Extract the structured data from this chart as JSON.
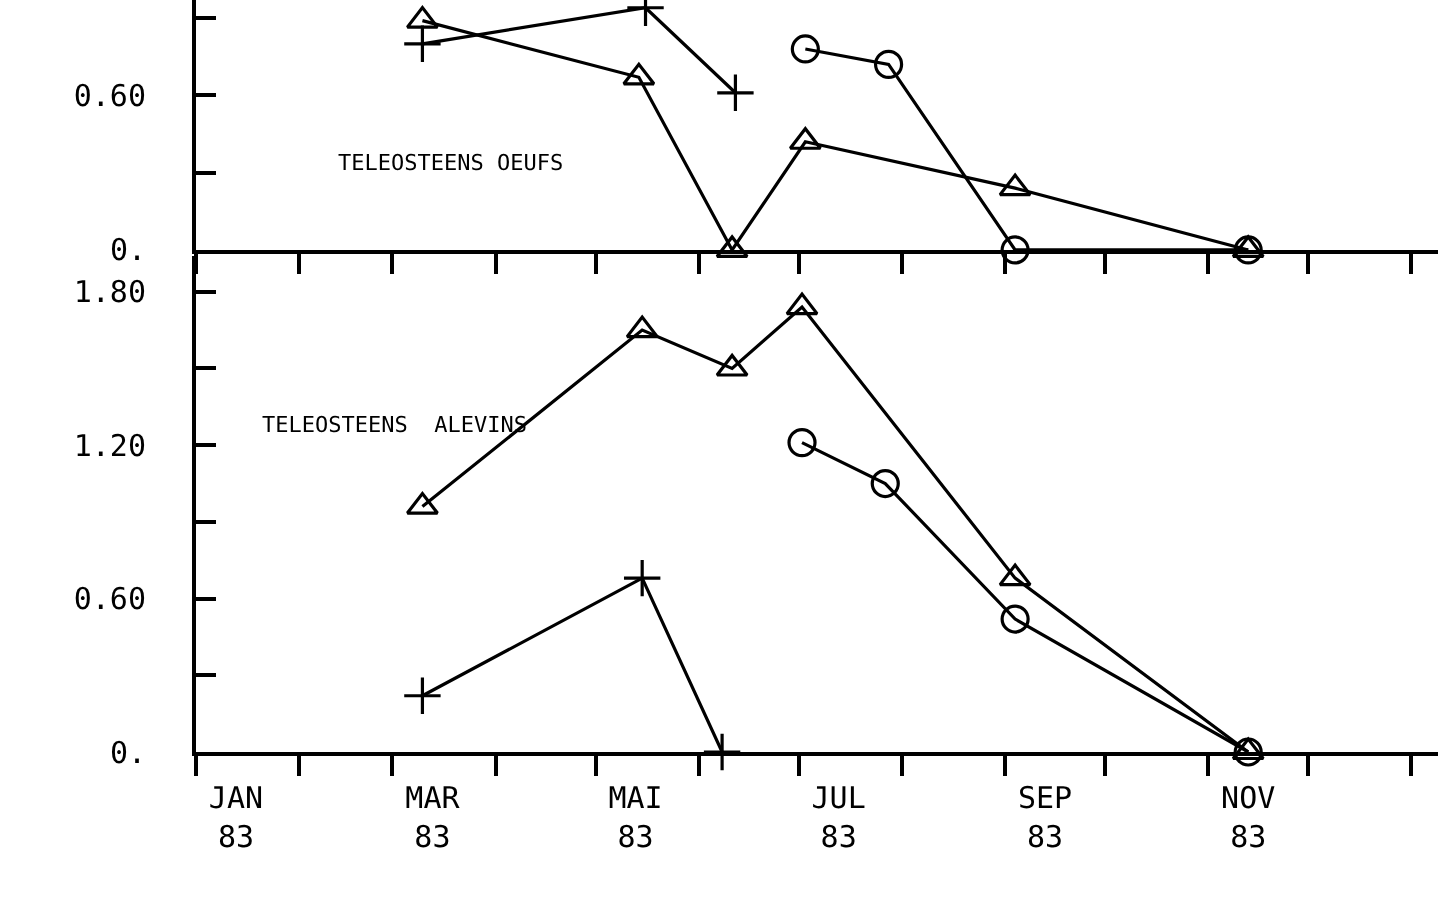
{
  "chart_data": [
    {
      "type": "line",
      "annotations": [
        "TELEOSTEENS OEUFS"
      ],
      "tick_labels": "y",
      "xlim": [
        "1983-01-01",
        "1984-01-09"
      ],
      "xticks": [
        {
          "value": "1983-01-01",
          "label": null
        },
        {
          "value": "1983-02-01",
          "label": null
        },
        {
          "value": "1983-03-01",
          "label": null
        },
        {
          "value": "1983-04-01",
          "label": null
        },
        {
          "value": "1983-05-01",
          "label": null
        },
        {
          "value": "1983-06-01",
          "label": null
        },
        {
          "value": "1983-07-01",
          "label": null
        },
        {
          "value": "1983-08-01",
          "label": null
        },
        {
          "value": "1983-09-01",
          "label": null
        },
        {
          "value": "1983-10-01",
          "label": null
        },
        {
          "value": "1983-11-01",
          "label": null
        },
        {
          "value": "1983-12-01",
          "label": null
        },
        {
          "value": "1984-01-01",
          "label": null
        }
      ],
      "ylim": [
        0,
        0.97
      ],
      "yticks": [
        {
          "value": 0,
          "label": "0."
        },
        {
          "value": 0.3,
          "label": null
        },
        {
          "value": 0.6,
          "label": "0.60"
        },
        {
          "value": 0.9,
          "label": null
        }
      ],
      "series": [
        {
          "color": "#000000",
          "marker": "triangle",
          "x": [
            "1983-03-10",
            "1983-05-14",
            "1983-06-11",
            "1983-07-03",
            "1983-09-04",
            "1983-11-13"
          ],
          "values": [
            0.89,
            0.67,
            0,
            0.42,
            0.24,
            0
          ]
        },
        {
          "color": "#000000",
          "marker": "cross",
          "x": [
            "1983-03-10",
            "1983-05-16",
            "1983-06-12"
          ],
          "values": [
            0.8,
            0.94,
            0.61
          ]
        },
        {
          "color": "#000000",
          "marker": "circle",
          "x": [
            "1983-07-03",
            "1983-07-28",
            "1983-09-04",
            "1983-11-13"
          ],
          "values": [
            0.78,
            0.72,
            0,
            0
          ]
        }
      ]
    },
    {
      "type": "line",
      "annotations": [
        "TELEOSTEENS  ALEVINS"
      ],
      "xlim": [
        "1983-01-01",
        "1984-01-09"
      ],
      "xticks": [
        {
          "value": "1983-01-01",
          "label": null
        },
        {
          "value": "1983-02-01",
          "label": null
        },
        {
          "value": "1983-03-01",
          "label": null
        },
        {
          "value": "1983-04-01",
          "label": null
        },
        {
          "value": "1983-05-01",
          "label": null
        },
        {
          "value": "1983-06-01",
          "label": null
        },
        {
          "value": "1983-07-01",
          "label": null
        },
        {
          "value": "1983-08-01",
          "label": null
        },
        {
          "value": "1983-09-01",
          "label": null
        },
        {
          "value": "1983-10-01",
          "label": null
        },
        {
          "value": "1983-11-01",
          "label": null
        },
        {
          "value": "1983-12-01",
          "label": null
        },
        {
          "value": "1984-01-01",
          "label": null
        },
        {
          "value": "1983-01-13",
          "label": "JAN\n83"
        },
        {
          "value": "1983-03-13",
          "label": "MAR\n83"
        },
        {
          "value": "1983-05-13",
          "label": "MAI\n83"
        },
        {
          "value": "1983-07-13",
          "label": "JUL\n83"
        },
        {
          "value": "1983-09-13",
          "label": "SEP\n83"
        },
        {
          "value": "1983-11-13",
          "label": "NOV\n83"
        }
      ],
      "ylim": [
        0,
        1.94
      ],
      "yticks": [
        {
          "value": 0,
          "label": "0."
        },
        {
          "value": 0.3,
          "label": null
        },
        {
          "value": 0.6,
          "label": "0.60"
        },
        {
          "value": 0.9,
          "label": null
        },
        {
          "value": 1.2,
          "label": "1.20"
        },
        {
          "value": 1.5,
          "label": null
        },
        {
          "value": 1.8,
          "label": "1.80"
        }
      ],
      "series": [
        {
          "color": "#000000",
          "marker": "triangle",
          "x": [
            "1983-03-10",
            "1983-05-15",
            "1983-06-11",
            "1983-07-02",
            "1983-09-04",
            "1983-11-13"
          ],
          "values": [
            0.96,
            1.65,
            1.5,
            1.74,
            0.68,
            0
          ]
        },
        {
          "color": "#000000",
          "marker": "cross",
          "x": [
            "1983-03-10",
            "1983-05-15",
            "1983-06-08"
          ],
          "values": [
            0.22,
            0.68,
            0
          ]
        },
        {
          "color": "#000000",
          "marker": "circle",
          "x": [
            "1983-07-02",
            "1983-07-27",
            "1983-09-04",
            "1983-11-13"
          ],
          "values": [
            1.21,
            1.05,
            0.52,
            0
          ]
        }
      ]
    }
  ]
}
